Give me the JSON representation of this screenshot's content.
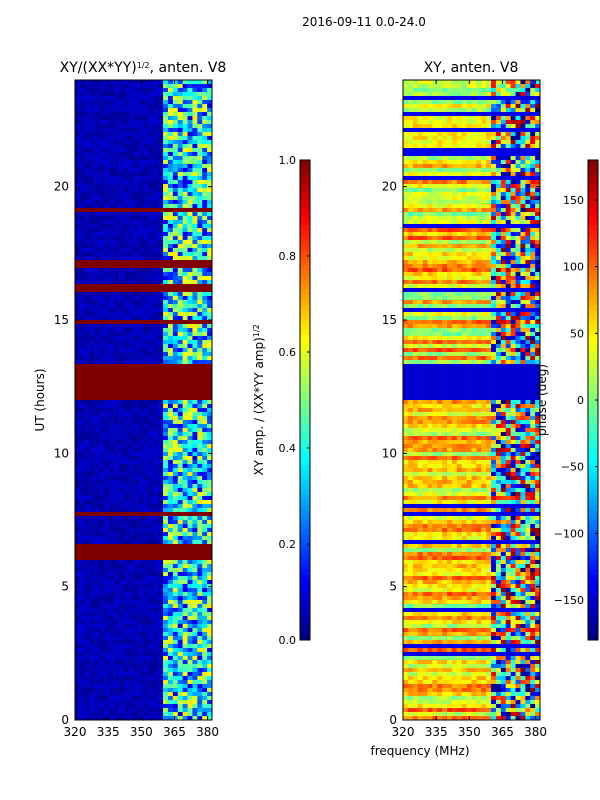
{
  "figure": {
    "suptitle": "2016-09-11 0.0-24.0",
    "shared_xlabel": "frequency (MHz)"
  },
  "chart_data": [
    {
      "type": "heatmap",
      "title_text": "XY/(XX*YY)",
      "title_exp": "1/2",
      "title_tail": ", anten. V8",
      "xlabel": "",
      "ylabel": "UT (hours)",
      "xlim": [
        320,
        382
      ],
      "ylim": [
        0,
        24
      ],
      "xticks": [
        "320",
        "335",
        "350",
        "365",
        "380"
      ],
      "xtick_values": [
        320,
        335,
        350,
        365,
        380
      ],
      "yticks": [
        "0",
        "5",
        "10",
        "15",
        "20"
      ],
      "ytick_values": [
        0,
        5,
        10,
        15,
        20
      ],
      "colorbar": {
        "label_text": "XY amp. / (XX*YY amp)",
        "label_exp": "1/2",
        "range": [
          0.0,
          1.0
        ],
        "ticks": [
          "0.0",
          "0.2",
          "0.4",
          "0.6",
          "0.8",
          "1.0"
        ],
        "tick_values": [
          0.0,
          0.2,
          0.4,
          0.6,
          0.8,
          1.0
        ],
        "colormap": "jet"
      },
      "saturated_bands_hours": [
        [
          12.0,
          13.3
        ],
        [
          19.0,
          19.2
        ],
        [
          17.0,
          17.2
        ],
        [
          14.8,
          15.0
        ],
        [
          7.6,
          7.8
        ],
        [
          6.0,
          6.6
        ],
        [
          16.1,
          16.3
        ]
      ],
      "active_band_mhz": [
        359,
        382
      ]
    },
    {
      "type": "heatmap",
      "title": "XY, anten. V8",
      "xlabel": "frequency (MHz)",
      "ylabel": "",
      "xlim": [
        320,
        382
      ],
      "ylim": [
        0,
        24
      ],
      "xticks": [
        "320",
        "335",
        "350",
        "365",
        "380"
      ],
      "xtick_values": [
        320,
        335,
        350,
        365,
        380
      ],
      "yticks": [
        "0",
        "5",
        "10",
        "15",
        "20"
      ],
      "ytick_values": [
        0,
        5,
        10,
        15,
        20
      ],
      "colorbar": {
        "label": "phase (deg)",
        "range": [
          -180,
          180
        ],
        "ticks": [
          "−150",
          "−100",
          "−50",
          "0",
          "50",
          "100",
          "150"
        ],
        "tick_values": [
          -150,
          -100,
          -50,
          0,
          50,
          100,
          150
        ],
        "colormap": "jet"
      },
      "flagged_band_hours": [
        12.0,
        13.3
      ],
      "active_band_mhz": [
        359,
        382
      ]
    }
  ]
}
